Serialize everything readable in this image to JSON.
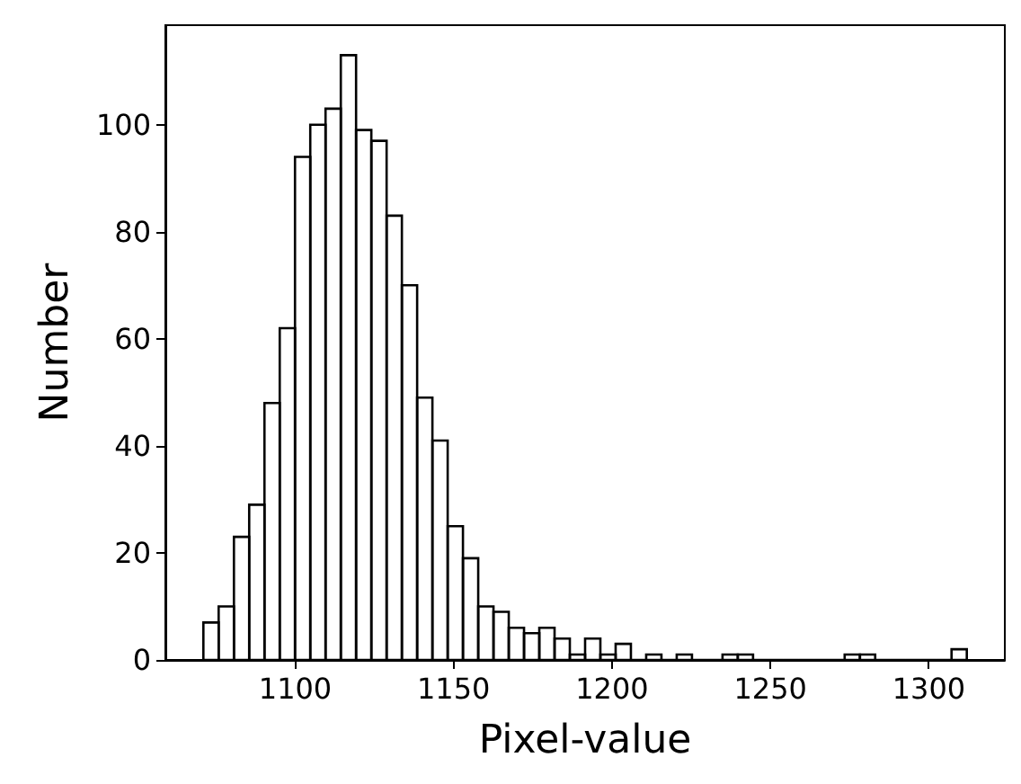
{
  "chart_data": {
    "type": "histogram",
    "xlabel": "Pixel-value",
    "ylabel": "Number",
    "color": "#000000",
    "bins": [
      1071,
      1075.82,
      1080.64,
      1085.46,
      1090.28,
      1095.1,
      1099.92,
      1104.74,
      1109.56,
      1114.38,
      1119.2,
      1124.02,
      1128.84,
      1133.66,
      1138.48,
      1143.3,
      1148.12,
      1152.94,
      1157.76,
      1162.58,
      1167.4,
      1172.22,
      1177.04,
      1181.86,
      1186.68,
      1191.5,
      1196.32,
      1201.14,
      1205.96,
      1210.78,
      1215.6,
      1220.42,
      1225.24,
      1230.06,
      1234.88,
      1239.7,
      1244.52,
      1249.34,
      1254.16,
      1258.98,
      1263.8,
      1268.62,
      1273.44,
      1278.26,
      1283.08,
      1287.9,
      1292.72,
      1297.54,
      1302.36,
      1307.18,
      1312
    ],
    "values": [
      7,
      10,
      23,
      29,
      48,
      62,
      94,
      100,
      103,
      113,
      99,
      97,
      83,
      70,
      49,
      41,
      25,
      19,
      10,
      9,
      6,
      5,
      6,
      4,
      1,
      4,
      1,
      3,
      0,
      1,
      0,
      1,
      0,
      0,
      1,
      1,
      0,
      0,
      0,
      0,
      0,
      0,
      1,
      1,
      0,
      0,
      0,
      0,
      0,
      2
    ],
    "xlim": [
      1059,
      1324
    ],
    "xticks": [
      1100,
      1150,
      1200,
      1250,
      1300
    ],
    "ylim": [
      0,
      118.6
    ],
    "yticks": [
      0,
      20,
      40,
      60,
      80,
      100
    ],
    "grid": false
  }
}
